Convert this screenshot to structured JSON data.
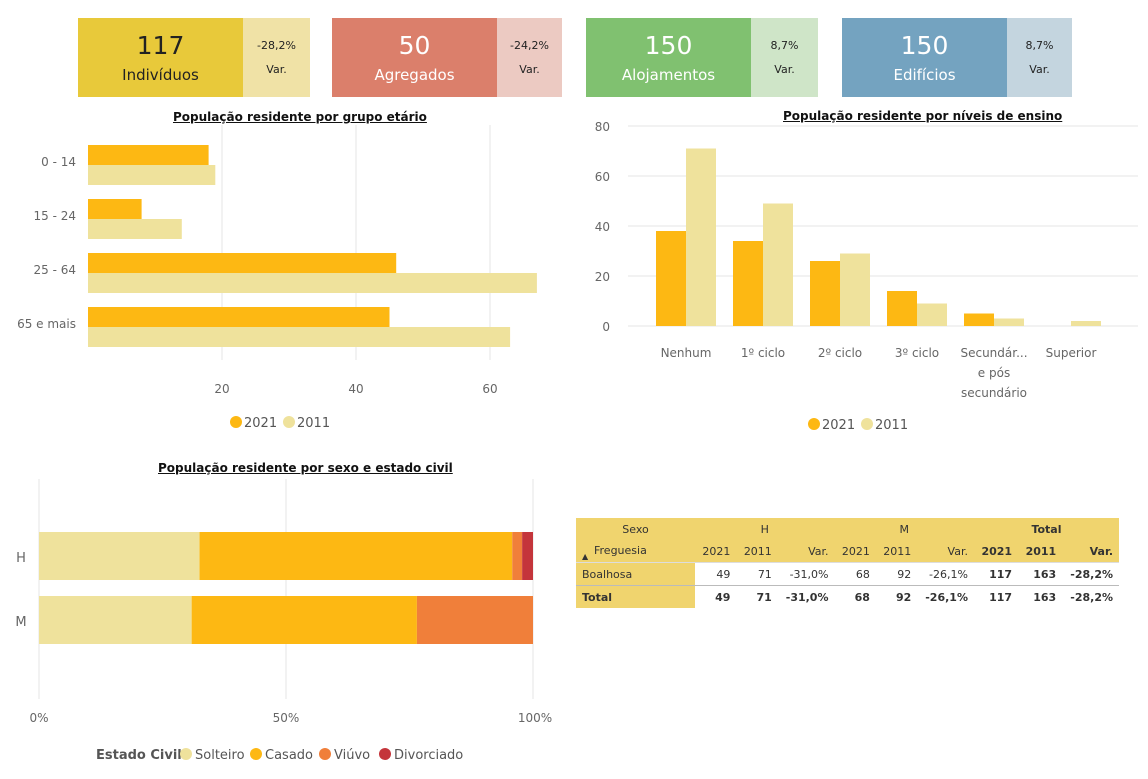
{
  "kpis": [
    {
      "value": "117",
      "label": "Indivíduos",
      "var": "-28,2%",
      "var_label": "Var.",
      "main_color": "#e8c93a",
      "side_color": "#f0e2a6",
      "text_color": "#222222"
    },
    {
      "value": "50",
      "label": "Agregados",
      "var": "-24,2%",
      "var_label": "Var.",
      "main_color": "#db7f6b",
      "side_color": "#eccac2",
      "text_color": "#ffffff"
    },
    {
      "value": "150",
      "label": "Alojamentos",
      "var": "8,7%",
      "var_label": "Var.",
      "main_color": "#80c170",
      "side_color": "#cfe5c8",
      "text_color": "#ffffff"
    },
    {
      "value": "150",
      "label": "Edifícios",
      "var": "8,7%",
      "var_label": "Var.",
      "main_color": "#74a3c0",
      "side_color": "#c4d5df",
      "text_color": "#ffffff"
    }
  ],
  "chart_data": [
    {
      "type": "bar",
      "orientation": "horizontal",
      "title": "População residente por grupo etário",
      "categories": [
        "0 - 14",
        "15 - 24",
        "25 - 64",
        "65 e mais"
      ],
      "series": [
        {
          "name": "2021",
          "color": "#fdb813",
          "values": [
            18,
            8,
            46,
            45
          ]
        },
        {
          "name": "2011",
          "color": "#efe29c",
          "values": [
            19,
            14,
            67,
            63
          ]
        }
      ],
      "xlim": [
        0,
        67
      ],
      "xticks": [
        20,
        40,
        60
      ],
      "grid": true,
      "legend": "bottom-center"
    },
    {
      "type": "bar",
      "title": "População residente por níveis de ensino",
      "categories": [
        "Nenhum",
        "1º ciclo",
        "2º ciclo",
        "3º ciclo",
        "Secundár... e pós secundário",
        "Superior"
      ],
      "category_lines": [
        [
          "Nenhum"
        ],
        [
          "1º ciclo"
        ],
        [
          "2º ciclo"
        ],
        [
          "3º ciclo"
        ],
        [
          "Secundár...",
          "e pós",
          "secundário"
        ],
        [
          "Superior"
        ]
      ],
      "series": [
        {
          "name": "2021",
          "color": "#fdb813",
          "values": [
            38,
            34,
            26,
            14,
            5,
            0
          ]
        },
        {
          "name": "2011",
          "color": "#efe29c",
          "values": [
            71,
            49,
            29,
            9,
            3,
            2
          ]
        }
      ],
      "ylim": [
        0,
        80
      ],
      "yticks": [
        0,
        20,
        40,
        60,
        80
      ],
      "grid": true,
      "legend": "bottom-center"
    },
    {
      "type": "bar",
      "orientation": "horizontal",
      "stacked": "percent",
      "title": "População residente por sexo e estado civil",
      "categories": [
        "H",
        "M"
      ],
      "legend_title": "Estado Civil",
      "series": [
        {
          "name": "Solteiro",
          "color": "#efe29c",
          "values": [
            32.5,
            30.9
          ]
        },
        {
          "name": "Casado",
          "color": "#fdb813",
          "values": [
            63.3,
            45.6
          ]
        },
        {
          "name": "Viúvo",
          "color": "#f07f3a",
          "values": [
            2.0,
            23.5
          ]
        },
        {
          "name": "Divorciado",
          "color": "#c4353b",
          "values": [
            2.2,
            0
          ]
        }
      ],
      "xticks": [
        "0%",
        "50%",
        "100%"
      ],
      "grid": true,
      "legend": "bottom-left"
    }
  ],
  "matrix": {
    "corner_label": "Sexo",
    "row_header": "Freguesia",
    "sort_icon": "▲",
    "groups": [
      "H",
      "M",
      "Total"
    ],
    "subcols": [
      "2021",
      "2011",
      "Var."
    ],
    "rows": [
      {
        "label": "Boalhosa",
        "values": [
          "49",
          "71",
          "-31,0%",
          "68",
          "92",
          "-26,1%",
          "117",
          "163",
          "-28,2%"
        ]
      },
      {
        "label": "Total",
        "values": [
          "49",
          "71",
          "-31,0%",
          "68",
          "92",
          "-26,1%",
          "117",
          "163",
          "-28,2%"
        ]
      }
    ]
  }
}
